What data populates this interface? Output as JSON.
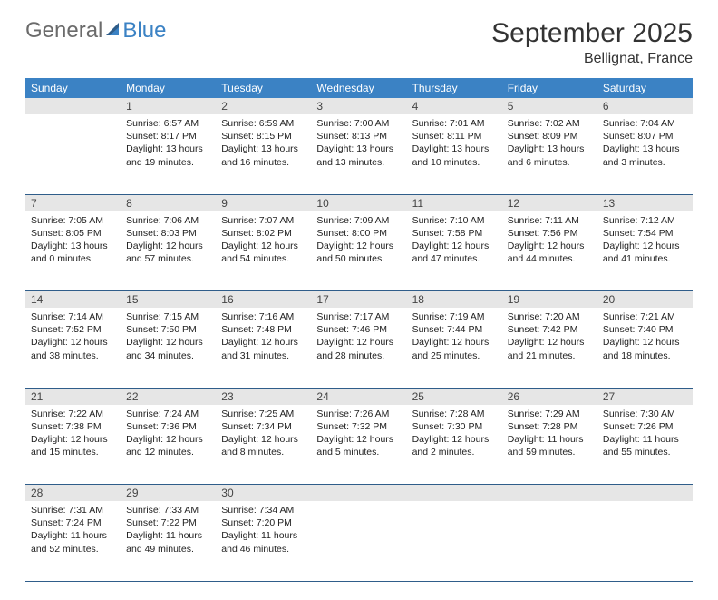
{
  "brand": {
    "part1": "General",
    "part2": "Blue"
  },
  "title": {
    "month": "September 2025",
    "location": "Bellignat, France"
  },
  "colors": {
    "header_bg": "#3b82c4",
    "header_text": "#ffffff",
    "daynum_bg": "#e6e6e6",
    "row_divider": "#2f5d8a",
    "logo_gray": "#6b6b6b",
    "logo_blue": "#3b82c4"
  },
  "day_names": [
    "Sunday",
    "Monday",
    "Tuesday",
    "Wednesday",
    "Thursday",
    "Friday",
    "Saturday"
  ],
  "weeks": [
    {
      "nums": [
        "",
        "1",
        "2",
        "3",
        "4",
        "5",
        "6"
      ],
      "cells": [
        null,
        {
          "sunrise": "6:57 AM",
          "sunset": "8:17 PM",
          "daylight": "13 hours and 19 minutes."
        },
        {
          "sunrise": "6:59 AM",
          "sunset": "8:15 PM",
          "daylight": "13 hours and 16 minutes."
        },
        {
          "sunrise": "7:00 AM",
          "sunset": "8:13 PM",
          "daylight": "13 hours and 13 minutes."
        },
        {
          "sunrise": "7:01 AM",
          "sunset": "8:11 PM",
          "daylight": "13 hours and 10 minutes."
        },
        {
          "sunrise": "7:02 AM",
          "sunset": "8:09 PM",
          "daylight": "13 hours and 6 minutes."
        },
        {
          "sunrise": "7:04 AM",
          "sunset": "8:07 PM",
          "daylight": "13 hours and 3 minutes."
        }
      ]
    },
    {
      "nums": [
        "7",
        "8",
        "9",
        "10",
        "11",
        "12",
        "13"
      ],
      "cells": [
        {
          "sunrise": "7:05 AM",
          "sunset": "8:05 PM",
          "daylight": "13 hours and 0 minutes."
        },
        {
          "sunrise": "7:06 AM",
          "sunset": "8:03 PM",
          "daylight": "12 hours and 57 minutes."
        },
        {
          "sunrise": "7:07 AM",
          "sunset": "8:02 PM",
          "daylight": "12 hours and 54 minutes."
        },
        {
          "sunrise": "7:09 AM",
          "sunset": "8:00 PM",
          "daylight": "12 hours and 50 minutes."
        },
        {
          "sunrise": "7:10 AM",
          "sunset": "7:58 PM",
          "daylight": "12 hours and 47 minutes."
        },
        {
          "sunrise": "7:11 AM",
          "sunset": "7:56 PM",
          "daylight": "12 hours and 44 minutes."
        },
        {
          "sunrise": "7:12 AM",
          "sunset": "7:54 PM",
          "daylight": "12 hours and 41 minutes."
        }
      ]
    },
    {
      "nums": [
        "14",
        "15",
        "16",
        "17",
        "18",
        "19",
        "20"
      ],
      "cells": [
        {
          "sunrise": "7:14 AM",
          "sunset": "7:52 PM",
          "daylight": "12 hours and 38 minutes."
        },
        {
          "sunrise": "7:15 AM",
          "sunset": "7:50 PM",
          "daylight": "12 hours and 34 minutes."
        },
        {
          "sunrise": "7:16 AM",
          "sunset": "7:48 PM",
          "daylight": "12 hours and 31 minutes."
        },
        {
          "sunrise": "7:17 AM",
          "sunset": "7:46 PM",
          "daylight": "12 hours and 28 minutes."
        },
        {
          "sunrise": "7:19 AM",
          "sunset": "7:44 PM",
          "daylight": "12 hours and 25 minutes."
        },
        {
          "sunrise": "7:20 AM",
          "sunset": "7:42 PM",
          "daylight": "12 hours and 21 minutes."
        },
        {
          "sunrise": "7:21 AM",
          "sunset": "7:40 PM",
          "daylight": "12 hours and 18 minutes."
        }
      ]
    },
    {
      "nums": [
        "21",
        "22",
        "23",
        "24",
        "25",
        "26",
        "27"
      ],
      "cells": [
        {
          "sunrise": "7:22 AM",
          "sunset": "7:38 PM",
          "daylight": "12 hours and 15 minutes."
        },
        {
          "sunrise": "7:24 AM",
          "sunset": "7:36 PM",
          "daylight": "12 hours and 12 minutes."
        },
        {
          "sunrise": "7:25 AM",
          "sunset": "7:34 PM",
          "daylight": "12 hours and 8 minutes."
        },
        {
          "sunrise": "7:26 AM",
          "sunset": "7:32 PM",
          "daylight": "12 hours and 5 minutes."
        },
        {
          "sunrise": "7:28 AM",
          "sunset": "7:30 PM",
          "daylight": "12 hours and 2 minutes."
        },
        {
          "sunrise": "7:29 AM",
          "sunset": "7:28 PM",
          "daylight": "11 hours and 59 minutes."
        },
        {
          "sunrise": "7:30 AM",
          "sunset": "7:26 PM",
          "daylight": "11 hours and 55 minutes."
        }
      ]
    },
    {
      "nums": [
        "28",
        "29",
        "30",
        "",
        "",
        "",
        ""
      ],
      "cells": [
        {
          "sunrise": "7:31 AM",
          "sunset": "7:24 PM",
          "daylight": "11 hours and 52 minutes."
        },
        {
          "sunrise": "7:33 AM",
          "sunset": "7:22 PM",
          "daylight": "11 hours and 49 minutes."
        },
        {
          "sunrise": "7:34 AM",
          "sunset": "7:20 PM",
          "daylight": "11 hours and 46 minutes."
        },
        null,
        null,
        null,
        null
      ]
    }
  ],
  "labels": {
    "sunrise": "Sunrise:",
    "sunset": "Sunset:",
    "daylight": "Daylight:"
  }
}
